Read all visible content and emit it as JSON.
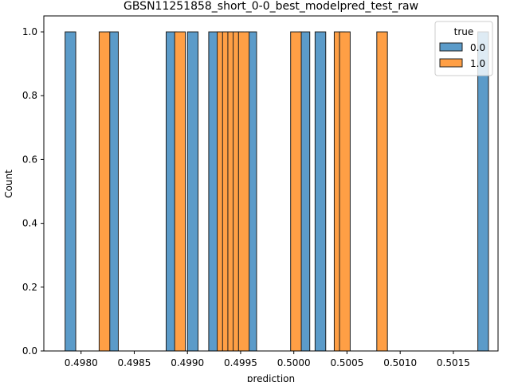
{
  "chart_data": {
    "type": "bar",
    "title": "GBSN11251858_short_0-0_best_modelpred_test_raw",
    "xlabel": "prediction",
    "ylabel": "Count",
    "xlim": [
      0.49765,
      0.50192
    ],
    "ylim": [
      0,
      1.05
    ],
    "bin_width": 0.0001,
    "xticks": [
      "0.4980",
      "0.4985",
      "0.4990",
      "0.4995",
      "0.5000",
      "0.5005",
      "0.5010",
      "0.5015"
    ],
    "xtick_values": [
      0.498,
      0.4985,
      0.499,
      0.4995,
      0.5,
      0.5005,
      0.501,
      0.5015
    ],
    "yticks": [
      "0.0",
      "0.2",
      "0.4",
      "0.6",
      "0.8",
      "1.0"
    ],
    "ytick_values": [
      0.0,
      0.2,
      0.4,
      0.6,
      0.8,
      1.0
    ],
    "grid": false,
    "legend": {
      "title": "true",
      "placement": "top-right",
      "entries": [
        "0.0",
        "1.0"
      ]
    },
    "series": [
      {
        "name": "0.0",
        "color": "#5b9bc9",
        "edge_color": "#1f1f1f",
        "bins": [
          {
            "x": 0.4979,
            "count": 1
          },
          {
            "x": 0.4983,
            "count": 1
          },
          {
            "x": 0.49885,
            "count": 1
          },
          {
            "x": 0.49905,
            "count": 1
          },
          {
            "x": 0.49925,
            "count": 1
          },
          {
            "x": 0.4996,
            "count": 1
          },
          {
            "x": 0.5001,
            "count": 1
          },
          {
            "x": 0.50025,
            "count": 1
          },
          {
            "x": 0.50178,
            "count": 1
          }
        ]
      },
      {
        "name": "1.0",
        "color": "#ff9f45",
        "edge_color": "#1f1f1f",
        "bins": [
          {
            "x": 0.49822,
            "count": 1
          },
          {
            "x": 0.49893,
            "count": 1
          },
          {
            "x": 0.49933,
            "count": 1
          },
          {
            "x": 0.49938,
            "count": 1
          },
          {
            "x": 0.49943,
            "count": 1
          },
          {
            "x": 0.49948,
            "count": 1
          },
          {
            "x": 0.49953,
            "count": 1
          },
          {
            "x": 0.50002,
            "count": 1
          },
          {
            "x": 0.50043,
            "count": 1
          },
          {
            "x": 0.50048,
            "count": 1
          },
          {
            "x": 0.50083,
            "count": 1
          }
        ]
      }
    ]
  }
}
